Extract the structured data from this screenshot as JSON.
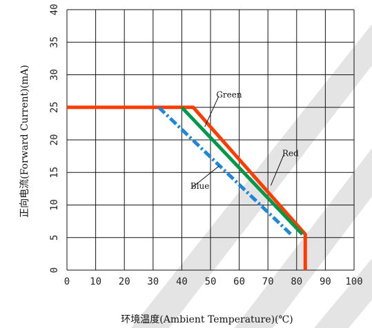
{
  "chart_data": {
    "type": "line",
    "xlabel": "环境温度(Ambient Temperature)(℃)",
    "ylabel": "正向电流(Forward Current)(mA)",
    "xlim": [
      0,
      100
    ],
    "ylim": [
      0,
      40
    ],
    "x_ticks": [
      "0",
      "10",
      "20",
      "30",
      "40",
      "50",
      "60",
      "70",
      "80",
      "90",
      "100"
    ],
    "y_ticks": [
      "0",
      "5",
      "10",
      "15",
      "20",
      "25",
      "30",
      "35",
      "40"
    ],
    "grid": true,
    "series": [
      {
        "name": "Red",
        "color": "#ff3c00",
        "style": "solid",
        "points": [
          [
            0,
            25
          ],
          [
            44,
            25
          ],
          [
            83,
            5.5
          ],
          [
            83,
            0
          ]
        ]
      },
      {
        "name": "Green",
        "color": "#00984a",
        "style": "solid",
        "points": [
          [
            40,
            25
          ],
          [
            82,
            5.5
          ]
        ]
      },
      {
        "name": "Blue",
        "color": "#1e88d8",
        "style": "dash-dot",
        "points": [
          [
            32,
            25
          ],
          [
            78,
            5.5
          ]
        ]
      }
    ],
    "annotations": [
      {
        "text": "Green",
        "x": 48,
        "y": 22,
        "label_x": 52,
        "label_y": 26.5
      },
      {
        "text": "Red",
        "x": 71,
        "y": 13,
        "label_x": 75,
        "label_y": 17.5
      },
      {
        "text": "Blue",
        "x": 53,
        "y": 16,
        "label_x": 43,
        "label_y": 12.5
      }
    ]
  }
}
